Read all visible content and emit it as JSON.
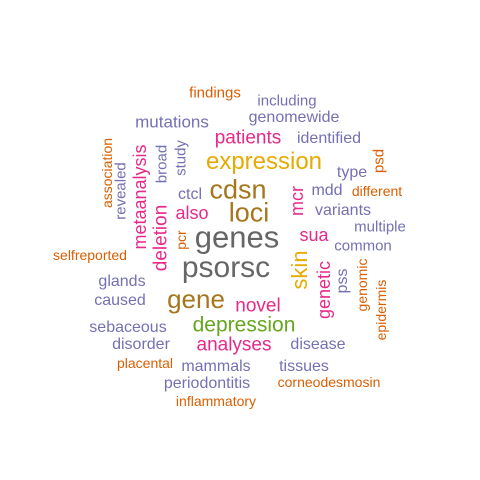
{
  "colors": {
    "orange": "#d95f02",
    "purple": "#7570b3",
    "magenta": "#e7298a",
    "green": "#66a61e",
    "gold": "#e6ab02",
    "brown": "#a6761d",
    "gray": "#666666"
  },
  "words": [
    {
      "text": "findings",
      "color": "orange"
    },
    {
      "text": "including",
      "color": "purple"
    },
    {
      "text": "genomewide",
      "color": "purple"
    },
    {
      "text": "mutations",
      "color": "purple"
    },
    {
      "text": "patients",
      "color": "magenta"
    },
    {
      "text": "identified",
      "color": "purple"
    },
    {
      "text": "association",
      "color": "orange"
    },
    {
      "text": "metaanalysis",
      "color": "magenta"
    },
    {
      "text": "broad",
      "color": "purple"
    },
    {
      "text": "study",
      "color": "purple"
    },
    {
      "text": "revealed",
      "color": "purple"
    },
    {
      "text": "expression",
      "color": "gold"
    },
    {
      "text": "psd",
      "color": "orange"
    },
    {
      "text": "type",
      "color": "purple"
    },
    {
      "text": "cdsn",
      "color": "brown"
    },
    {
      "text": "mdd",
      "color": "purple"
    },
    {
      "text": "different",
      "color": "orange"
    },
    {
      "text": "ctcl",
      "color": "purple"
    },
    {
      "text": "loci",
      "color": "brown"
    },
    {
      "text": "mcr",
      "color": "magenta"
    },
    {
      "text": "also",
      "color": "magenta"
    },
    {
      "text": "variants",
      "color": "purple"
    },
    {
      "text": "multiple",
      "color": "purple"
    },
    {
      "text": "deletion",
      "color": "magenta"
    },
    {
      "text": "pcr",
      "color": "orange"
    },
    {
      "text": "genes",
      "color": "gray"
    },
    {
      "text": "sua",
      "color": "magenta"
    },
    {
      "text": "common",
      "color": "purple"
    },
    {
      "text": "selfreported",
      "color": "orange"
    },
    {
      "text": "skin",
      "color": "gold"
    },
    {
      "text": "psorsc",
      "color": "gray"
    },
    {
      "text": "pss",
      "color": "purple"
    },
    {
      "text": "genomic",
      "color": "orange"
    },
    {
      "text": "glands",
      "color": "purple"
    },
    {
      "text": "genetic",
      "color": "magenta"
    },
    {
      "text": "epidermis",
      "color": "orange"
    },
    {
      "text": "caused",
      "color": "purple"
    },
    {
      "text": "gene",
      "color": "brown"
    },
    {
      "text": "novel",
      "color": "magenta"
    },
    {
      "text": "depression",
      "color": "green"
    },
    {
      "text": "sebaceous",
      "color": "purple"
    },
    {
      "text": "disorder",
      "color": "purple"
    },
    {
      "text": "analyses",
      "color": "magenta"
    },
    {
      "text": "disease",
      "color": "purple"
    },
    {
      "text": "placental",
      "color": "orange"
    },
    {
      "text": "mammals",
      "color": "purple"
    },
    {
      "text": "tissues",
      "color": "purple"
    },
    {
      "text": "periodontitis",
      "color": "purple"
    },
    {
      "text": "corneodesmosin",
      "color": "orange"
    },
    {
      "text": "inflammatory",
      "color": "orange"
    }
  ]
}
